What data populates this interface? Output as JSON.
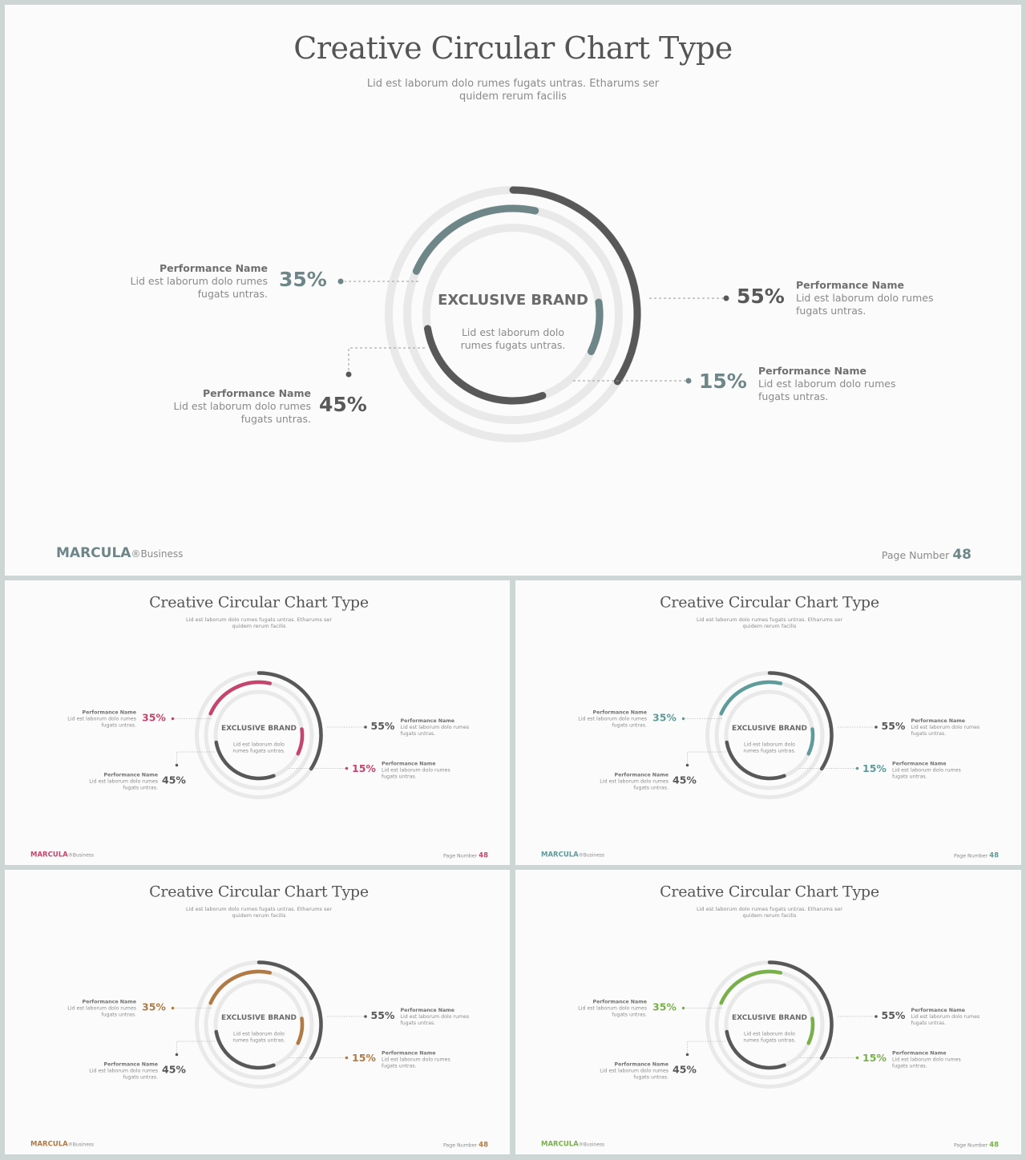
{
  "slide": {
    "title": "Creative Circular Chart Type",
    "subtitle": "Lid est laborum dolo rumes fugats untras. Etharums ser quidem rerum facilis",
    "center_title": "EXCLUSIVE BRAND",
    "center_text": "Lid est laborum dolo rumes fugats untras.",
    "brand": "MARCULA",
    "brand_suffix": "®Business",
    "page_label": "Page Number",
    "page_number": "48"
  },
  "chart_data": {
    "type": "radial-bar",
    "center_label": "EXCLUSIVE BRAND",
    "items": [
      {
        "name": "Performance Name",
        "value": 55,
        "label": "55%",
        "description": "Lid est laborum dolo rumes fugats untras.",
        "ring": "outer",
        "tone": "dark"
      },
      {
        "name": "Performance Name",
        "value": 35,
        "label": "35%",
        "description": "Lid est laborum dolo rumes fugats untras.",
        "ring": "middle",
        "tone": "accent"
      },
      {
        "name": "Performance Name",
        "value": 45,
        "label": "45%",
        "description": "Lid est laborum dolo rumes fugats untras.",
        "ring": "inner",
        "tone": "dark"
      },
      {
        "name": "Performance Name",
        "value": 15,
        "label": "15%",
        "description": "Lid est laborum dolo rumes fugats untras.",
        "ring": "inner",
        "tone": "accent"
      }
    ]
  },
  "themes": [
    {
      "name": "slate",
      "accent": "#6f8688",
      "dark": "#585858",
      "track": "#e9e9e9"
    },
    {
      "name": "magenta",
      "accent": "#c4466e",
      "dark": "#585858",
      "track": "#e9e9e9"
    },
    {
      "name": "teal",
      "accent": "#5f9b9a",
      "dark": "#585858",
      "track": "#e9e9e9"
    },
    {
      "name": "bronze",
      "accent": "#b07a45",
      "dark": "#585858",
      "track": "#e9e9e9"
    },
    {
      "name": "green",
      "accent": "#7ab04a",
      "dark": "#585858",
      "track": "#e9e9e9"
    }
  ]
}
